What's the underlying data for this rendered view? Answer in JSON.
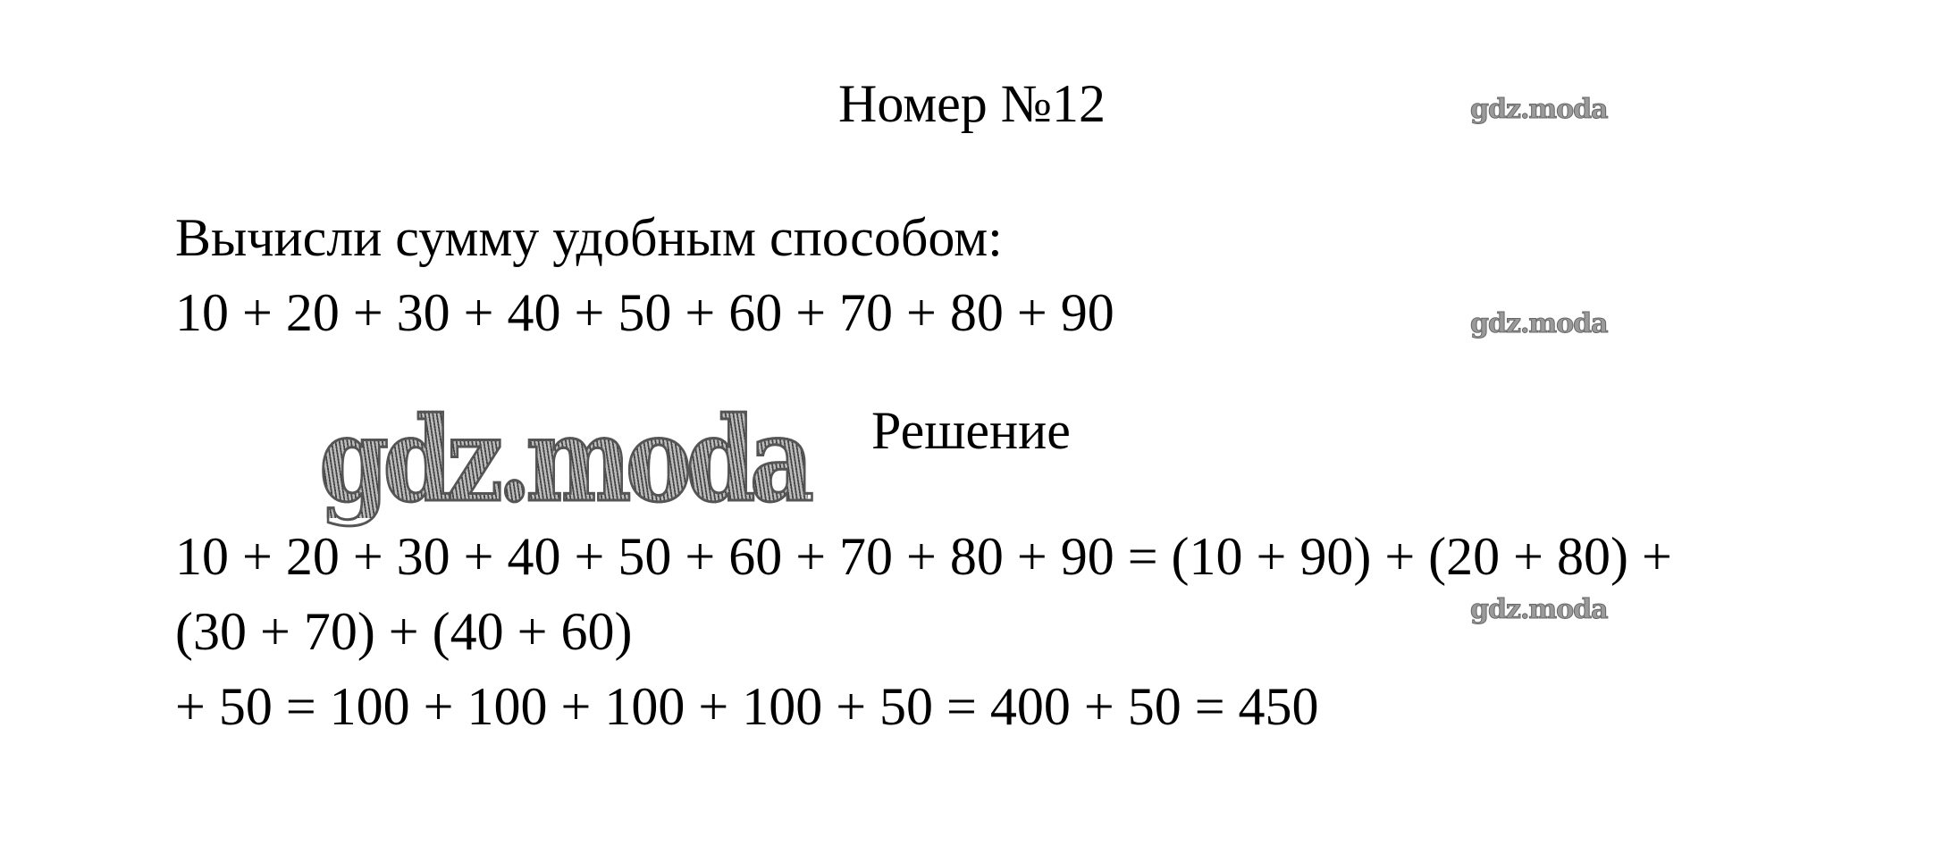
{
  "title": "Номер №12",
  "task": {
    "instruction": "Вычисли сумму удобным способом:",
    "expression": "10 + 20 + 30 + 40 + 50 + 60 + 70 + 80 + 90"
  },
  "solution": {
    "heading": "Решение",
    "lines": [
      "10 + 20 + 30 + 40 + 50 + 60 + 70 + 80 + 90 = (10 + 90) + (20 + 80) +",
      "(30 + 70) + (40 + 60)",
      "+ 50 = 100 + 100 + 100 + 100 + 50 = 400 + 50 = 450"
    ]
  },
  "watermark": "gdz.moda"
}
